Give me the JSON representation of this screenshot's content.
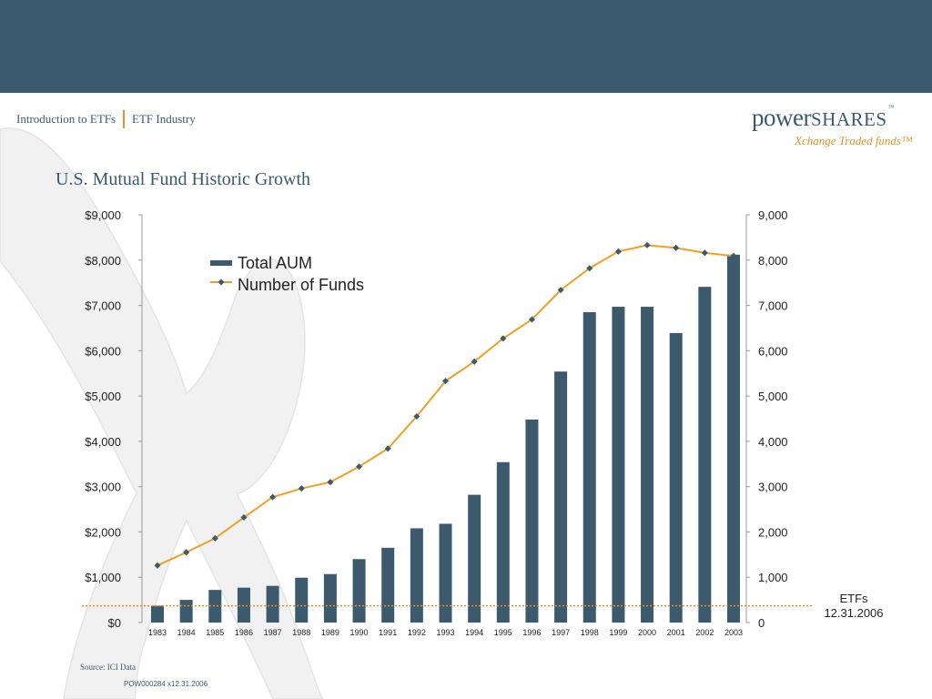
{
  "breadcrumb": {
    "section": "Introduction to ETFs",
    "page": "ETF Industry"
  },
  "logo": {
    "word1": "power",
    "word2": "SHARES",
    "tm": "™",
    "tagline": "Xchange Traded funds™"
  },
  "colors": {
    "band": "#3b5a6d",
    "accent": "#e0932a",
    "bars": "#3b5a6d",
    "line": "#f0a020",
    "marker": "#3b5a6d"
  },
  "chart_data": {
    "type": "bar",
    "title": "U.S. Mutual Fund Historic Growth",
    "categories": [
      "1983",
      "1984",
      "1985",
      "1986",
      "1987",
      "1988",
      "1989",
      "1990",
      "1991",
      "1992",
      "1993",
      "1994",
      "1995",
      "1996",
      "1997",
      "1998",
      "1999",
      "2000",
      "2001",
      "2002",
      "2003"
    ],
    "series": [
      {
        "name": "Total AUM",
        "type": "bar",
        "axis": "left",
        "values": [
          370,
          500,
          720,
          770,
          810,
          990,
          1070,
          1400,
          1650,
          2080,
          2180,
          2820,
          3540,
          4480,
          5540,
          6850,
          6970,
          6970,
          6390,
          7410,
          8120
        ]
      },
      {
        "name": "Number of Funds",
        "type": "line",
        "axis": "right",
        "values": [
          1260,
          1550,
          1860,
          2320,
          2770,
          2960,
          3100,
          3440,
          3840,
          4550,
          5330,
          5760,
          6270,
          6690,
          7340,
          7820,
          8190,
          8330,
          8270,
          8160,
          8090
        ]
      }
    ],
    "y_left": {
      "range": [
        0,
        9000
      ],
      "ticks": [
        "$0",
        "$1,000",
        "$2,000",
        "$3,000",
        "$4,000",
        "$5,000",
        "$6,000",
        "$7,000",
        "$8,000",
        "$9,000"
      ]
    },
    "y_right": {
      "range": [
        0,
        9000
      ],
      "ticks": [
        "0",
        "1,000",
        "2,000",
        "3,000",
        "4,000",
        "5,000",
        "6,000",
        "7,000",
        "8,000",
        "9,000"
      ]
    },
    "reference_line": {
      "value": 370,
      "label_line1": "ETFs",
      "label_line2": "12.31.2006"
    },
    "legend": "top-left",
    "grid": false
  },
  "footer": {
    "source": "Source: ICI Data",
    "code": "POW000284 x12.31.2006"
  }
}
